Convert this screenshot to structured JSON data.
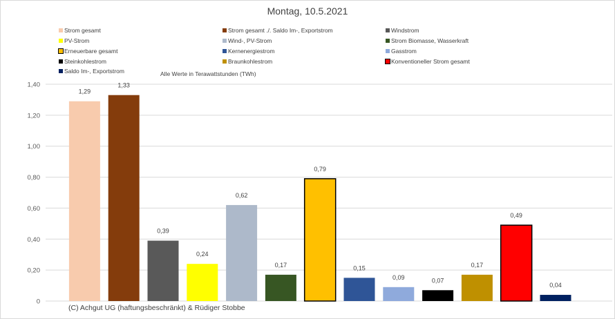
{
  "chart_data": {
    "type": "bar",
    "title": "Montag, 10.5.2021",
    "units_note": "Alle Werte in Terawattstunden (TWh)",
    "credit": "(C) Achgut UG (haftungsbeschränkt) & Rüdiger Stobbe",
    "ylim": [
      0,
      1.4
    ],
    "yticks": [
      "0",
      "0,20",
      "0,40",
      "0,60",
      "0,80",
      "1,00",
      "1,20",
      "1,40"
    ],
    "grid": true,
    "legend_position": "top",
    "categories": [
      "Strom gesamt",
      "Strom gesamt ./. Saldo Im-, Exportstrom",
      "Windstrom",
      "PV-Strom",
      "Wind-, PV-Strom",
      "Strom Biomasse, Wasserkraft",
      "Erneuerbare gesamt",
      "Kernenergiestrom",
      "Gasstrom",
      "Steinkohlestrom",
      "Braunkohlestrom",
      "Konventioneller Strom gesamt",
      "Saldo Im-, Exportstrom"
    ],
    "values": [
      1.29,
      1.33,
      0.39,
      0.24,
      0.62,
      0.17,
      0.79,
      0.15,
      0.09,
      0.07,
      0.17,
      0.49,
      0.04
    ],
    "data_labels": [
      "1,29",
      "1,33",
      "0,39",
      "0,24",
      "0,62",
      "0,17",
      "0,79",
      "0,15",
      "0,09",
      "0,07",
      "0,17",
      "0,49",
      "0,04"
    ],
    "colors": [
      "#f8cbad",
      "#843c0c",
      "#595959",
      "#ffff00",
      "#adb9ca",
      "#375623",
      "#ffc000",
      "#2f5597",
      "#8faadc",
      "#000000",
      "#bf9000",
      "#ff0000",
      "#002060"
    ],
    "outlined": [
      false,
      false,
      false,
      false,
      false,
      false,
      true,
      false,
      false,
      false,
      false,
      true,
      false
    ]
  }
}
